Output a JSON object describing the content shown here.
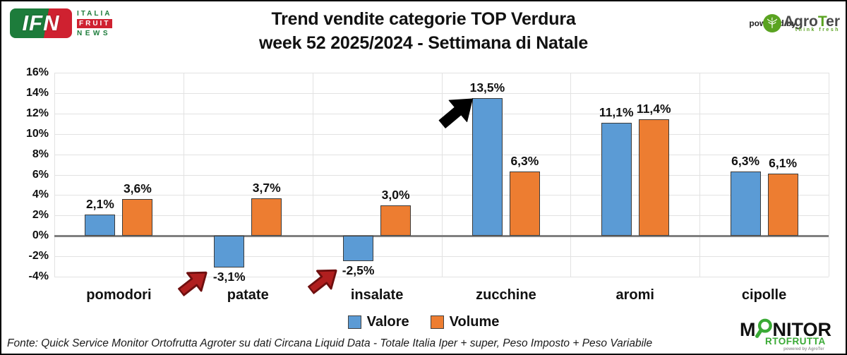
{
  "header": {
    "title_line1": "Trend vendite categorie TOP Verdura",
    "title_line2": "week 52 2025/2024 - Settimana di Natale",
    "ifn_logo": {
      "badge": "IFN",
      "line1": "ITALIA",
      "line2": "FRUIT",
      "line3": "NEWS"
    },
    "powered_by": "powered by",
    "agroter": {
      "name_start": "Agro",
      "name_t": "T",
      "name_end": "er",
      "tagline": "think fresh"
    }
  },
  "chart_data": {
    "type": "bar",
    "title": "Trend vendite categorie TOP Verdura week 52 2025/2024 - Settimana di Natale",
    "xlabel": "",
    "ylabel": "",
    "categories": [
      "pomodori",
      "patate",
      "insalate",
      "zucchine",
      "aromi",
      "cipolle"
    ],
    "series": [
      {
        "name": "Valore",
        "color": "#5B9BD5",
        "values": [
          2.1,
          -3.1,
          -2.5,
          13.5,
          11.1,
          6.3
        ],
        "labels": [
          "2,1%",
          "-3,1%",
          "-2,5%",
          "13,5%",
          "11,1%",
          "6,3%"
        ]
      },
      {
        "name": "Volume",
        "color": "#ED7D31",
        "values": [
          3.6,
          3.7,
          3.0,
          6.3,
          11.4,
          6.1
        ],
        "labels": [
          "3,6%",
          "3,7%",
          "3,0%",
          "6,3%",
          "11,4%",
          "6,1%"
        ]
      }
    ],
    "ylim": [
      -4,
      16
    ],
    "ytick_step": 2,
    "yticks": [
      "16%",
      "14%",
      "12%",
      "10%",
      "8%",
      "6%",
      "4%",
      "2%",
      "0%",
      "-2%",
      "-4%"
    ],
    "grid": true,
    "legend_position": "bottom",
    "annotations": [
      {
        "type": "block-arrow",
        "points_at": "patate Valore -3,1%",
        "direction": "up-right",
        "color": "#b01f1f",
        "stroke": "#6e0f0f"
      },
      {
        "type": "block-arrow",
        "points_at": "insalate Valore -2,5%",
        "direction": "up-right",
        "color": "#b01f1f",
        "stroke": "#6e0f0f"
      },
      {
        "type": "block-arrow",
        "points_at": "zucchine Valore 13,5%",
        "direction": "up-right",
        "color": "#000000",
        "stroke": "#000000"
      }
    ]
  },
  "legend": {
    "items": [
      {
        "label": "Valore",
        "color": "#5B9BD5"
      },
      {
        "label": "Volume",
        "color": "#ED7D31"
      }
    ]
  },
  "footer": {
    "source": "Fonte: Quick Service Monitor Ortofrutta Agroter su dati Circana Liquid Data - Totale Italia Iper + super, Peso Imposto + Peso Variabile"
  },
  "monitor_logo": {
    "line1_prefix": "M",
    "line1_suffix": "NITOR",
    "line2": "RTOFRUTTA",
    "line3": "powered by AgroTer",
    "green": "#3aaa35"
  }
}
